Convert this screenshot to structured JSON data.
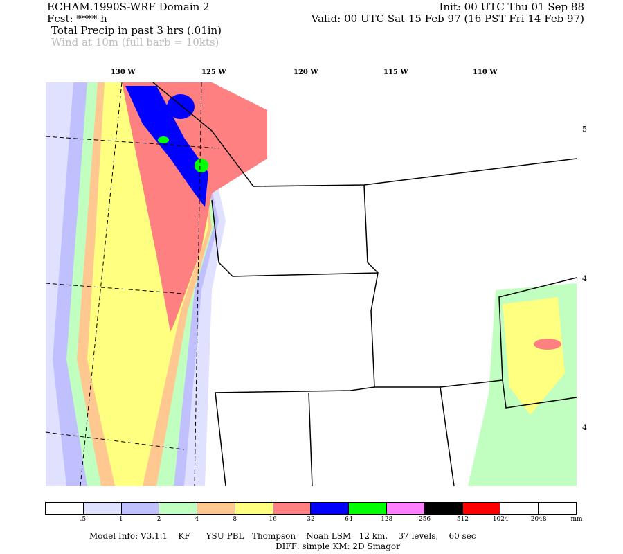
{
  "header": {
    "model": "ECHAM.1990S-WRF Domain 2",
    "init": "Init: 00 UTC Thu 01 Sep 88",
    "fcst": "Fcst: **** h",
    "valid": "Valid: 00 UTC Sat 15 Feb 97 (16 PST Fri 14 Feb 97)",
    "field1": "Total Precip in past 3 hrs (.01in)",
    "field2": "Wind at 10m (full barb = 10kts)"
  },
  "map": {
    "lon_labels": [
      "130 W",
      "125 W",
      "120 W",
      "115 W",
      "110 W"
    ],
    "lat_labels": [
      "5",
      "4",
      "4"
    ]
  },
  "colorbar": {
    "colors": [
      "#ffffff",
      "#e0e0ff",
      "#c0c0ff",
      "#c0ffc0",
      "#ffc890",
      "#ffff80",
      "#ff8080",
      "#0000ff",
      "#00ff00",
      "#ff80ff",
      "#000000",
      "#ff0000",
      "#ffffff",
      "#ffffff"
    ],
    "labels": [
      ".5",
      "1",
      "2",
      "4",
      "8",
      "16",
      "32",
      "64",
      "128",
      "256",
      "512",
      "1024",
      "2048"
    ],
    "unit": "mm"
  },
  "footer": {
    "line1": "Model Info: V3.1.1    KF      YSU PBL   Thompson    Noah LSM   12 km,    37 levels,    60 sec",
    "line2": "DIFF: simple KM: 2D Smagor"
  }
}
